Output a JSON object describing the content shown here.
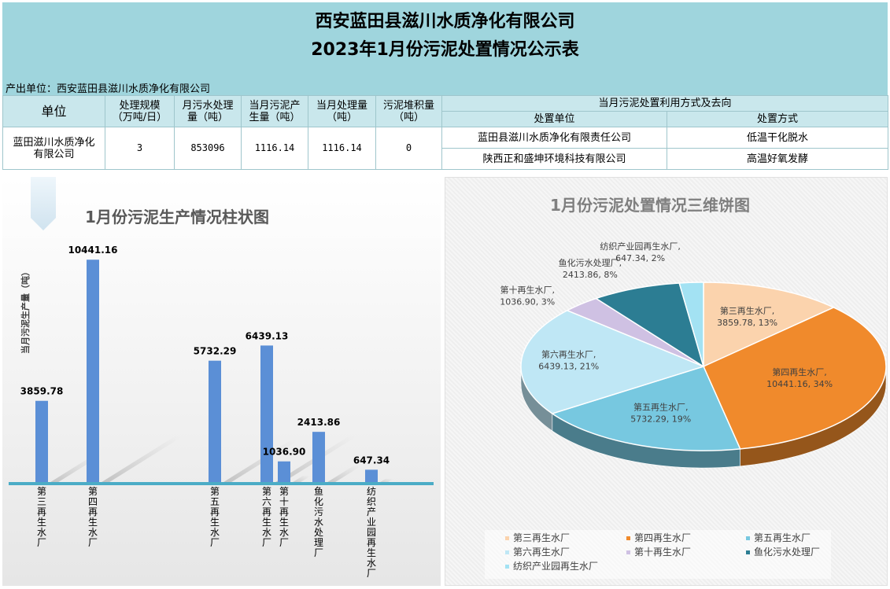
{
  "header": {
    "company": "西安蓝田县滋川水质净化有限公司",
    "report_title": "2023年1月份污泥处置情况公示表",
    "producer": "产出单位：西安蓝田县滋川水质净化有限公司"
  },
  "table": {
    "col_unit": "单位",
    "col_scale": [
      "处理规模",
      "（万吨/日）"
    ],
    "col_sewage": [
      "月污水处理",
      "量（吨）"
    ],
    "col_sludge_gen": [
      "当月污泥产",
      "生量（吨）"
    ],
    "col_treated": [
      "当月处理量",
      "（吨）"
    ],
    "col_stock": [
      "污泥堆积量",
      "（吨）"
    ],
    "col_disposal_group": "当月污泥处置利用方式及去向",
    "col_disposal_unit": "处置单位",
    "col_disposal_method": "处置方式",
    "row": {
      "unit": [
        "蓝田滋川水质净化",
        "有限公司"
      ],
      "scale": "3",
      "sewage": "853096",
      "sludge_gen": "1116.14",
      "treated": "1116.14",
      "stock": "0",
      "disposals": [
        {
          "unit": "蓝田县滋川水质净化有限责任公司",
          "method": "低温干化脱水"
        },
        {
          "unit": "陕西正和盛坤环境科技有限公司",
          "method": "高温好氧发酵"
        }
      ]
    }
  },
  "chart_data": [
    {
      "type": "bar",
      "title": "1月份污泥生产情况柱状图",
      "ylabel": "当月污泥生产量（吨）",
      "categories": [
        "第三再生水厂",
        "第四再生水厂",
        "第五再生水厂",
        "第六再生水厂",
        "第十再生水厂",
        "鱼化污水处理厂",
        "纺织产业园再生水厂"
      ],
      "values": [
        3859.78,
        10441.16,
        5732.29,
        6439.13,
        1036.9,
        2413.86,
        647.34
      ],
      "value_labels": [
        "3859.78",
        "10441.16",
        "5732.29",
        "6439.13",
        "1036.90",
        "2413.86",
        "647.34"
      ],
      "ylim": [
        0,
        11000
      ],
      "color": "#5b8fd6",
      "axis_color": "#4bacc6"
    },
    {
      "type": "pie",
      "title": "1月份污泥处置情况三维饼图",
      "categories": [
        "第三再生水厂",
        "第四再生水厂",
        "第五再生水厂",
        "第六再生水厂",
        "第十再生水厂",
        "鱼化污水处理厂",
        "纺织产业园再生水厂"
      ],
      "values": [
        3859.78,
        10441.16,
        5732.29,
        6439.13,
        1036.9,
        2413.86,
        647.34
      ],
      "data_labels": [
        [
          "第三再生水厂,",
          "3859.78, 13%"
        ],
        [
          "第四再生水厂,",
          "10441.16, 34%"
        ],
        [
          "第五再生水厂,",
          "5732.29, 19%"
        ],
        [
          "第六再生水厂,",
          "6439.13, 21%"
        ],
        [
          "第十再生水厂,",
          "1036.90, 3%"
        ],
        [
          "鱼化污水处理厂,",
          "2413.86, 8%"
        ],
        [
          "纺织产业园再生水厂,",
          "647.34, 2%"
        ]
      ],
      "colors": [
        "#fbd3ad",
        "#f08a2c",
        "#77c8e0",
        "#bfe7f5",
        "#cfc1e3",
        "#2c7d93",
        "#a3e2f3"
      ],
      "legend_position": "bottom"
    }
  ]
}
